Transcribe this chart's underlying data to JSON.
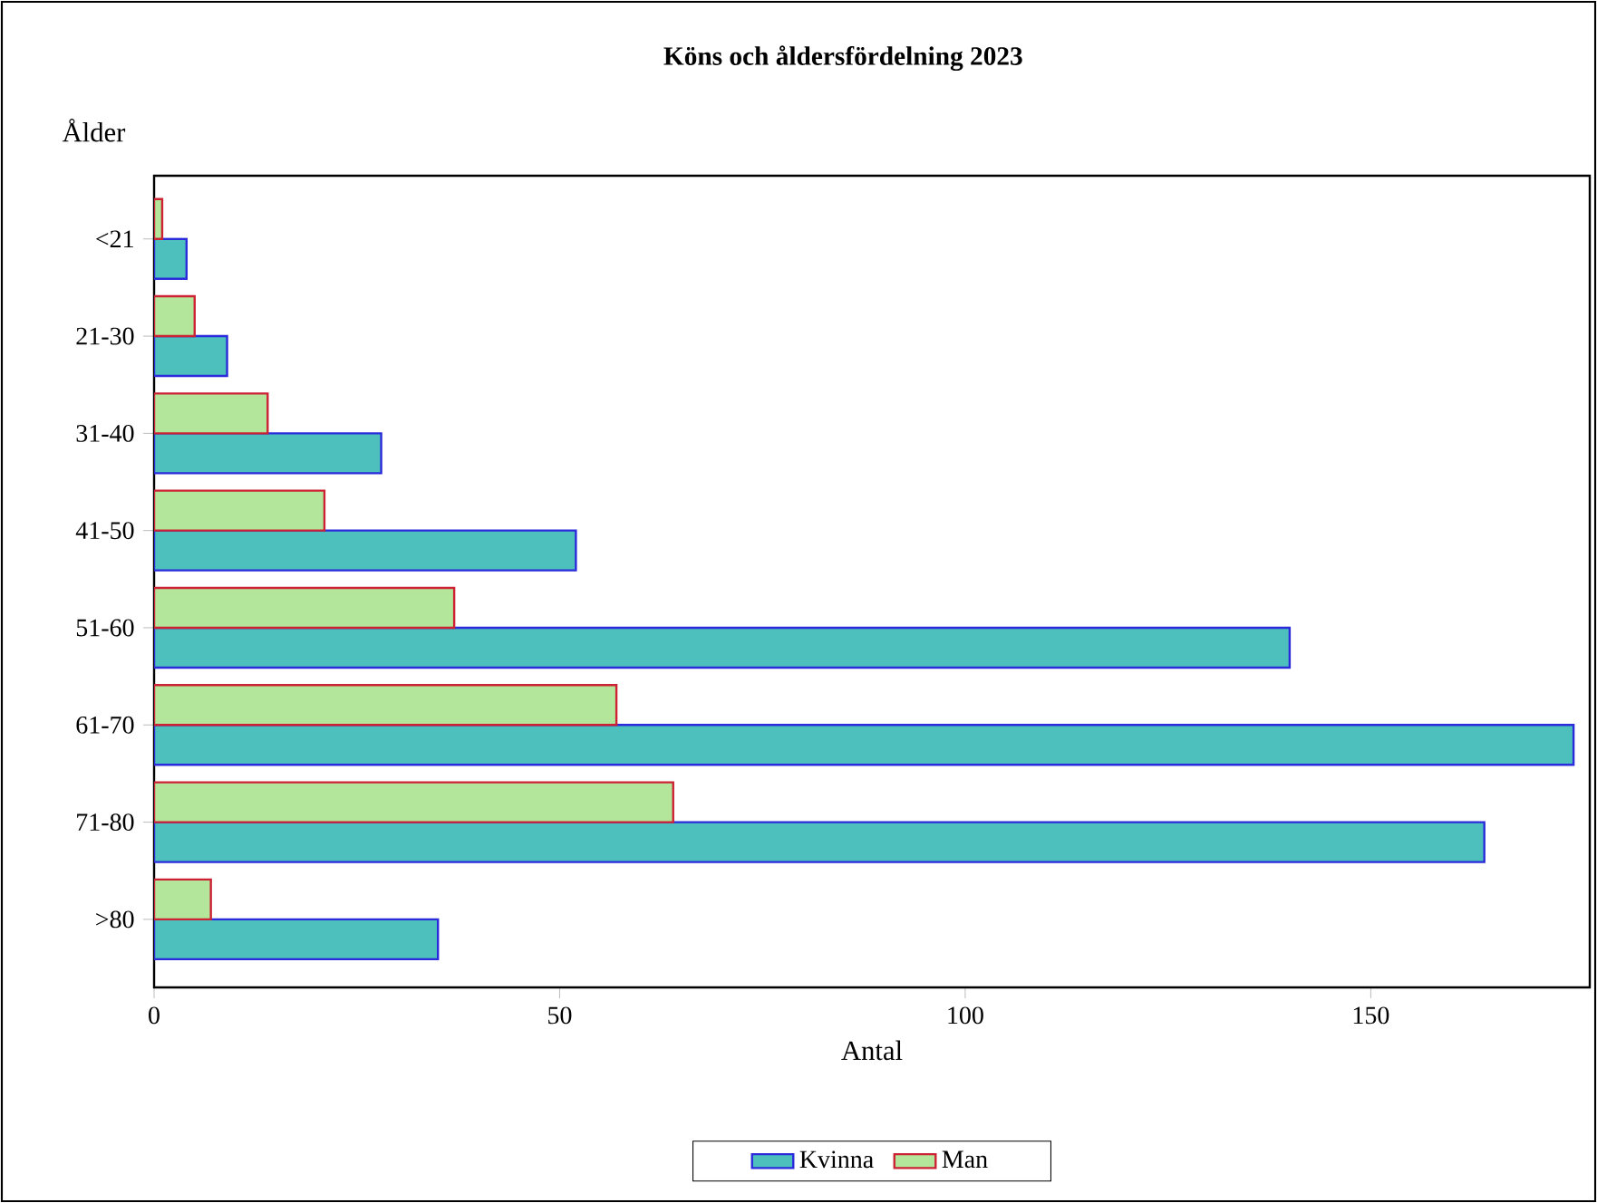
{
  "chart_data": {
    "type": "bar",
    "orientation": "horizontal",
    "title": "Köns och åldersfördelning 2023",
    "xlabel": "Antal",
    "ylabel": "Ålder",
    "categories": [
      "<21",
      "21-30",
      "31-40",
      "41-50",
      "51-60",
      "61-70",
      "71-80",
      ">80"
    ],
    "series": [
      {
        "name": "Kvinna",
        "color": "#4dbfbc",
        "values": [
          4,
          9,
          28,
          52,
          140,
          175,
          164,
          35
        ]
      },
      {
        "name": "Man",
        "color": "#b3e69a",
        "values": [
          1,
          5,
          14,
          21,
          37,
          57,
          64,
          7
        ]
      }
    ],
    "xlim": [
      0,
      177
    ],
    "xticks": [
      0,
      50,
      100,
      150
    ],
    "legend": "bottom"
  }
}
